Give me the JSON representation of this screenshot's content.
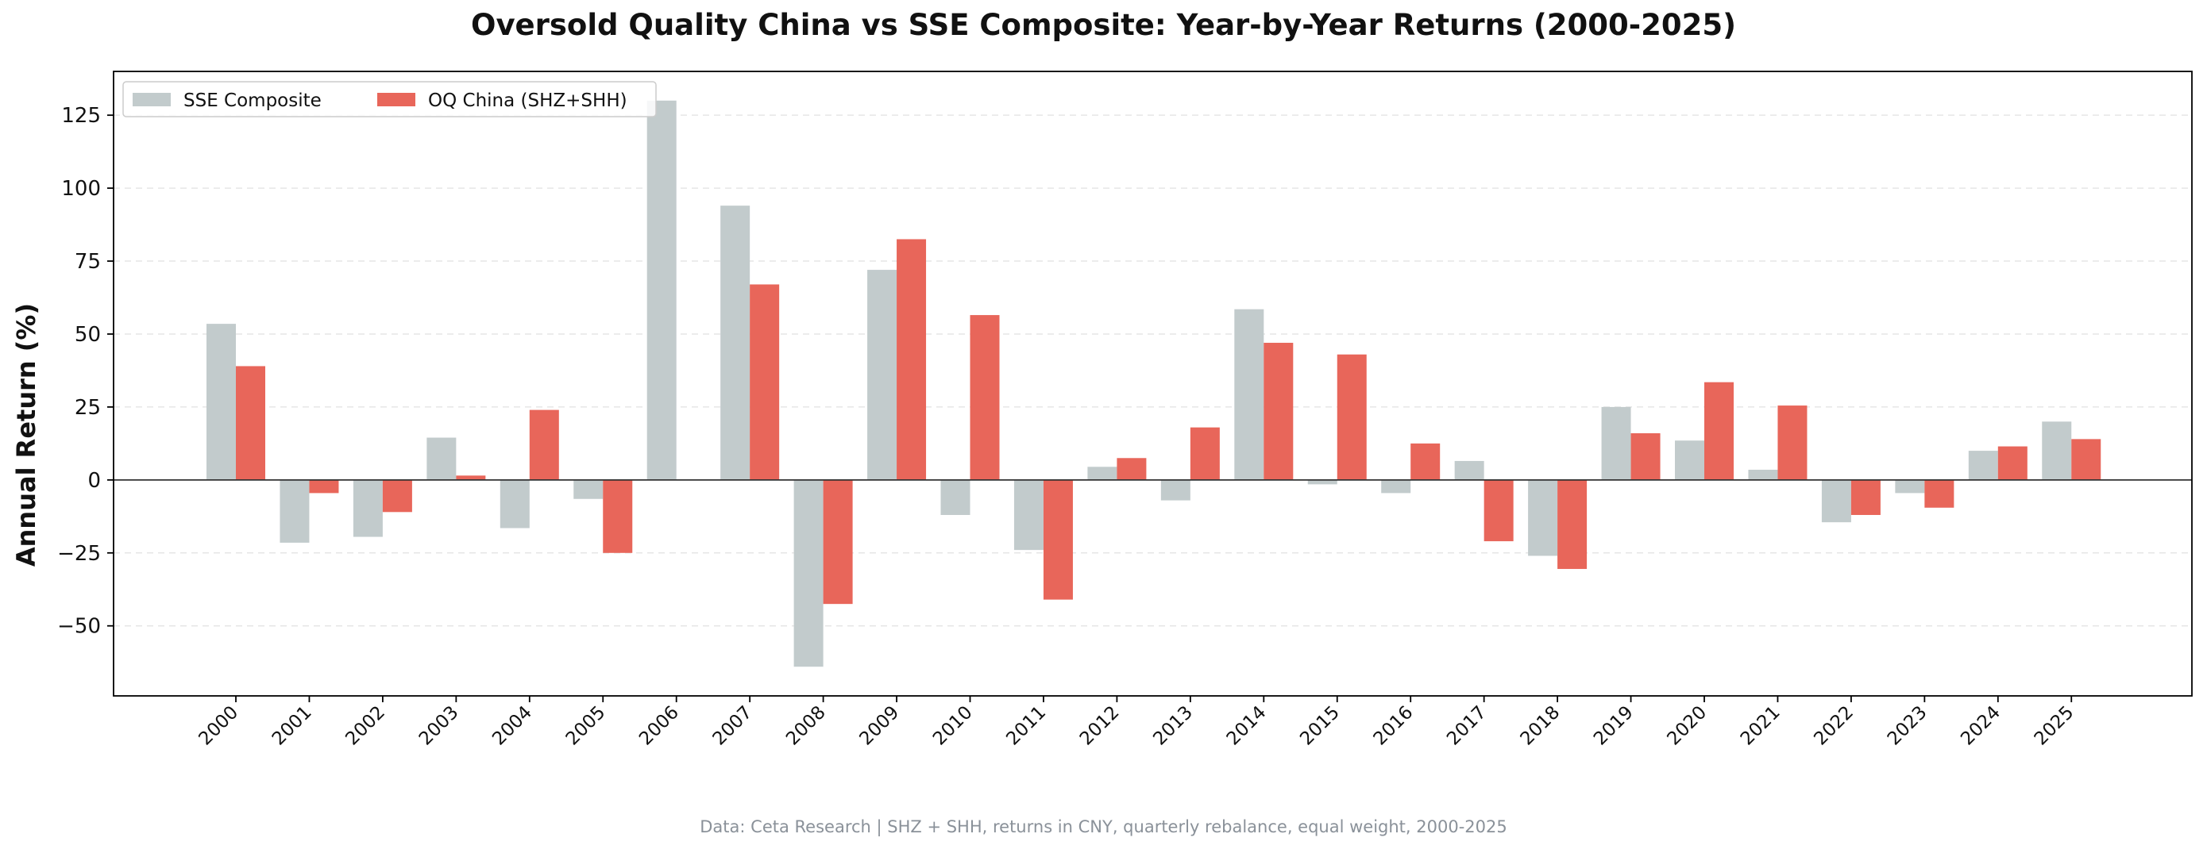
{
  "chart_data": {
    "type": "bar",
    "title": "Oversold Quality China vs SSE Composite: Year-by-Year Returns (2000-2025)",
    "ylabel": "Annual Return (%)",
    "xlabel": "",
    "footer": "Data: Ceta Research | SHZ + SHH, returns in CNY, quarterly rebalance, equal weight, 2000-2025",
    "ylim": [
      -74,
      140
    ],
    "yticks": [
      -50,
      -25,
      0,
      25,
      50,
      75,
      100,
      125
    ],
    "ytick_labels": [
      "−50",
      "−25",
      "0",
      "25",
      "50",
      "75",
      "100",
      "125"
    ],
    "grid": true,
    "legend_position": "top-left",
    "categories": [
      "2000",
      "2001",
      "2002",
      "2003",
      "2004",
      "2005",
      "2006",
      "2007",
      "2008",
      "2009",
      "2010",
      "2011",
      "2012",
      "2013",
      "2014",
      "2015",
      "2016",
      "2017",
      "2018",
      "2019",
      "2020",
      "2021",
      "2022",
      "2023",
      "2024",
      "2025"
    ],
    "series": [
      {
        "name": "SSE Composite",
        "color": "#c2cbcc",
        "values": [
          53.5,
          -21.5,
          -19.5,
          14.5,
          -16.5,
          -6.5,
          130.0,
          94.0,
          -64.0,
          72.0,
          -12.0,
          -24.0,
          4.5,
          -7.0,
          58.5,
          -1.5,
          -4.5,
          6.5,
          -26.0,
          25.0,
          13.5,
          3.5,
          -14.5,
          -4.5,
          10.0,
          20.0
        ]
      },
      {
        "name": "OQ China (SHZ+SHH)",
        "color": "#e8665a",
        "values": [
          39.0,
          -4.5,
          -11.0,
          1.5,
          24.0,
          -25.0,
          0,
          67.0,
          -42.5,
          82.5,
          56.5,
          -41.0,
          7.5,
          18.0,
          47.0,
          43.0,
          12.5,
          -21.0,
          -30.5,
          16.0,
          33.5,
          25.5,
          -12.0,
          -9.5,
          11.5,
          14.0
        ]
      }
    ],
    "axis_color": "#000000",
    "zero_line_color": "#333333",
    "grid_color": "#e6e6e6"
  }
}
